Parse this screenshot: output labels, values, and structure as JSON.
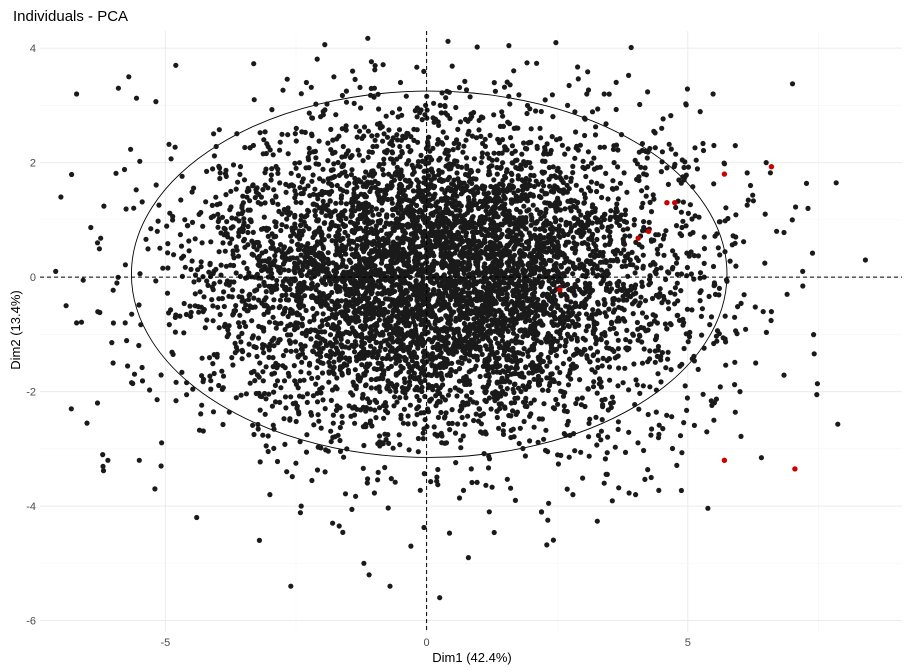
{
  "chart_data": {
    "type": "scatter",
    "title": "Individuals - PCA",
    "xlabel": "Dim1 (42.4%)",
    "ylabel": "Dim2 (13.4%)",
    "xlim": [
      -7.4,
      9.1
    ],
    "ylim": [
      -6.2,
      4.3
    ],
    "xticks": [
      -5,
      0,
      5
    ],
    "yticks": [
      -6,
      -4,
      -2,
      0,
      2,
      4
    ],
    "grid": true,
    "reference_lines": {
      "x": 0,
      "y": 0,
      "style": "dashed"
    },
    "ellipse": {
      "center": [
        0.05,
        0.05
      ],
      "rx": 5.7,
      "ry": 3.2
    },
    "colors": {
      "points": "#1a1a1a",
      "highlight": "#cc0000",
      "grid": "#ebebeb"
    },
    "series": [
      {
        "values_description_free": true,
        "cloud": {
          "count": 6500,
          "mean": [
            0.3,
            0.0
          ],
          "sd": [
            2.3,
            1.35
          ],
          "seed": 7
        },
        "points": [
          [
            -7.0,
            1.4
          ],
          [
            -6.9,
            -0.5
          ],
          [
            -6.8,
            -2.3
          ],
          [
            -6.7,
            3.2
          ],
          [
            -6.5,
            -2.55
          ],
          [
            -6.3,
            -2.2
          ],
          [
            -6.2,
            -3.1
          ],
          [
            -6.1,
            -3.2
          ],
          [
            -6.0,
            -1.5
          ],
          [
            -5.9,
            3.3
          ],
          [
            -5.7,
            3.5
          ],
          [
            -5.5,
            -3.2
          ],
          [
            -5.2,
            -3.7
          ],
          [
            -4.8,
            3.7
          ],
          [
            -4.4,
            -4.2
          ],
          [
            -3.2,
            -4.6
          ],
          [
            -3.0,
            -3.8
          ],
          [
            -2.6,
            -5.4
          ],
          [
            -2.4,
            -4.0
          ],
          [
            -1.8,
            -4.3
          ],
          [
            -1.2,
            -5.0
          ],
          [
            -1.1,
            -5.2
          ],
          [
            -0.7,
            -5.4
          ],
          [
            -0.3,
            -4.7
          ],
          [
            0.25,
            -5.6
          ],
          [
            0.8,
            -4.9
          ],
          [
            1.2,
            -4.1
          ],
          [
            1.7,
            -3.9
          ],
          [
            2.2,
            -4.1
          ],
          [
            2.8,
            -3.8
          ],
          [
            3.4,
            -3.6
          ],
          [
            4.0,
            -3.8
          ],
          [
            4.3,
            -3.5
          ],
          [
            5.5,
            -2.5
          ],
          [
            6.0,
            -2.0
          ],
          [
            6.3,
            -1.5
          ],
          [
            6.7,
            0.8
          ],
          [
            7.0,
            1.0
          ],
          [
            7.3,
            1.2
          ],
          [
            8.4,
            0.3
          ],
          [
            6.2,
            1.6
          ],
          [
            6.5,
            2.0
          ],
          [
            5.5,
            2.3
          ],
          [
            4.5,
            2.6
          ],
          [
            3.4,
            3.2
          ],
          [
            2.7,
            3.0
          ],
          [
            -3.3,
            3.1
          ],
          [
            -2.3,
            3.4
          ],
          [
            -1.0,
            3.3
          ],
          [
            -0.5,
            3.4
          ],
          [
            -7.1,
            0.1
          ],
          [
            -6.7,
            -0.8
          ],
          [
            -6.3,
            0.6
          ],
          [
            6.9,
            -0.3
          ],
          [
            7.2,
            0.1
          ]
        ]
      },
      {
        "name": "",
        "highlight": true,
        "points": [
          [
            2.55,
            -0.22
          ],
          [
            4.05,
            0.68
          ],
          [
            4.25,
            0.8
          ],
          [
            4.6,
            1.3
          ],
          [
            4.75,
            1.3
          ],
          [
            5.7,
            1.8
          ],
          [
            6.6,
            1.93
          ],
          [
            5.7,
            -3.2
          ],
          [
            7.05,
            -3.35
          ]
        ]
      }
    ]
  }
}
